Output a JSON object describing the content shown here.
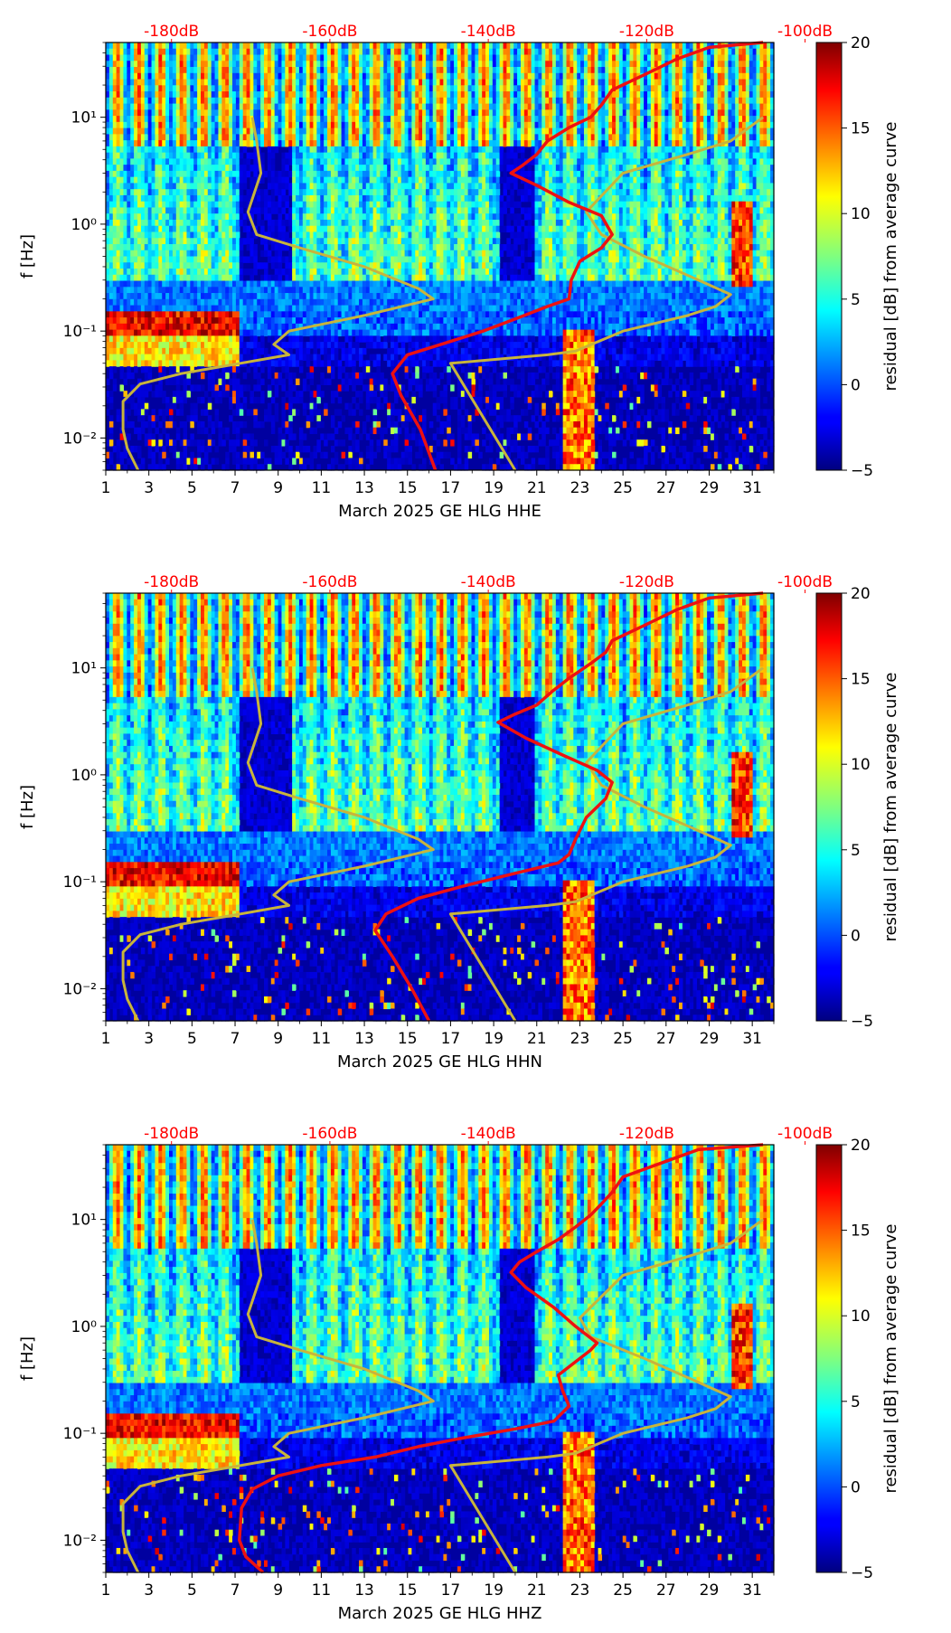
{
  "figure": {
    "background": "#ffffff"
  },
  "chart_data": [
    {
      "type": "heatmap",
      "xlabel": "March 2025 GE HLG  HHE",
      "ylabel": "f [Hz]",
      "x_ticks": [
        "1",
        "3",
        "5",
        "7",
        "9",
        "11",
        "13",
        "15",
        "17",
        "19",
        "21",
        "23",
        "25",
        "27",
        "29",
        "31"
      ],
      "x_range": [
        1,
        32
      ],
      "y_ticks": [
        "10⁻²",
        "10⁻¹",
        "10⁰",
        "10¹"
      ],
      "y_range": [
        0.005,
        50
      ],
      "y_scale": "log",
      "top_axis_labels": [
        "-180dB",
        "-160dB",
        "-140dB",
        "-120dB",
        "-100dB"
      ],
      "top_axis_color": "#ff0000",
      "colorbar": {
        "label": "residual [dB] from average curve",
        "ticks": [
          "−5",
          "0",
          "5",
          "10",
          "15",
          "20"
        ],
        "range": [
          -5,
          20
        ],
        "colormap": "jet"
      },
      "red_curve": {
        "color": "#ee1111",
        "points": [
          [
            16.3,
            0.005
          ],
          [
            15.6,
            0.012
          ],
          [
            14.7,
            0.025
          ],
          [
            14.3,
            0.04
          ],
          [
            15.0,
            0.06
          ],
          [
            17.0,
            0.08
          ],
          [
            18.5,
            0.1
          ],
          [
            20.0,
            0.13
          ],
          [
            21.5,
            0.17
          ],
          [
            22.5,
            0.2
          ],
          [
            22.6,
            0.3
          ],
          [
            23.0,
            0.45
          ],
          [
            24.0,
            0.6
          ],
          [
            24.5,
            0.8
          ],
          [
            24.0,
            1.2
          ],
          [
            22.5,
            1.6
          ],
          [
            21.0,
            2.3
          ],
          [
            19.8,
            3.0
          ],
          [
            20.3,
            3.5
          ],
          [
            21.0,
            4.5
          ],
          [
            21.5,
            6
          ],
          [
            22.5,
            8
          ],
          [
            23.5,
            10
          ],
          [
            24.0,
            13
          ],
          [
            24.5,
            18
          ],
          [
            26.0,
            25
          ],
          [
            27.5,
            35
          ],
          [
            29.0,
            45
          ],
          [
            31.5,
            50
          ]
        ]
      },
      "yellow_curve": {
        "color": "#c8b43c",
        "points": [
          [
            2.5,
            0.005
          ],
          [
            2.0,
            0.008
          ],
          [
            1.8,
            0.012
          ],
          [
            1.8,
            0.022
          ],
          [
            2.6,
            0.032
          ],
          [
            4.5,
            0.04
          ],
          [
            9.5,
            0.06
          ],
          [
            8.8,
            0.075
          ],
          [
            9.5,
            0.1
          ],
          [
            13.0,
            0.14
          ],
          [
            16.2,
            0.2
          ],
          [
            15.5,
            0.25
          ],
          [
            13.0,
            0.4
          ],
          [
            10.0,
            0.6
          ],
          [
            8.0,
            0.8
          ],
          [
            7.6,
            1.3
          ],
          [
            8.2,
            3.0
          ],
          [
            8.0,
            6.0
          ],
          [
            7.8,
            10.0
          ]
        ]
      },
      "yellow_curve_2": {
        "color": "#c8b43c",
        "points": [
          [
            20.0,
            0.005
          ],
          [
            17.0,
            0.05
          ],
          [
            21.5,
            0.06
          ],
          [
            22.8,
            0.065
          ],
          [
            25.0,
            0.1
          ],
          [
            28.0,
            0.14
          ],
          [
            29.3,
            0.17
          ],
          [
            30.0,
            0.22
          ],
          [
            28.5,
            0.3
          ],
          [
            26.0,
            0.5
          ],
          [
            24.0,
            0.8
          ],
          [
            23.3,
            1.3
          ],
          [
            25.0,
            3.0
          ],
          [
            28.0,
            4.5
          ],
          [
            30.0,
            6.0
          ],
          [
            31.5,
            10.0
          ]
        ]
      }
    },
    {
      "type": "heatmap",
      "xlabel": "March 2025 GE HLG  HHN",
      "ylabel": "f [Hz]",
      "x_ticks": [
        "1",
        "3",
        "5",
        "7",
        "9",
        "11",
        "13",
        "15",
        "17",
        "19",
        "21",
        "23",
        "25",
        "27",
        "29",
        "31"
      ],
      "x_range": [
        1,
        32
      ],
      "y_ticks": [
        "10⁻²",
        "10⁻¹",
        "10⁰",
        "10¹"
      ],
      "y_range": [
        0.005,
        50
      ],
      "y_scale": "log",
      "top_axis_labels": [
        "-180dB",
        "-160dB",
        "-140dB",
        "-120dB",
        "-100dB"
      ],
      "top_axis_color": "#ff0000",
      "colorbar": {
        "label": "residual [dB] from average curve",
        "ticks": [
          "−5",
          "0",
          "5",
          "10",
          "15",
          "20"
        ],
        "range": [
          -5,
          20
        ],
        "colormap": "jet"
      },
      "red_curve": {
        "color": "#ee1111",
        "points": [
          [
            16.0,
            0.005
          ],
          [
            15.2,
            0.01
          ],
          [
            14.3,
            0.02
          ],
          [
            13.5,
            0.035
          ],
          [
            14.0,
            0.05
          ],
          [
            15.5,
            0.07
          ],
          [
            17.5,
            0.09
          ],
          [
            20.0,
            0.12
          ],
          [
            22.0,
            0.15
          ],
          [
            22.5,
            0.18
          ],
          [
            22.8,
            0.25
          ],
          [
            23.3,
            0.4
          ],
          [
            24.2,
            0.6
          ],
          [
            24.5,
            0.85
          ],
          [
            23.8,
            1.1
          ],
          [
            22.3,
            1.5
          ],
          [
            20.5,
            2.2
          ],
          [
            19.2,
            3.1
          ],
          [
            20.0,
            3.7
          ],
          [
            21.0,
            4.5
          ],
          [
            21.7,
            6
          ],
          [
            22.5,
            8
          ],
          [
            23.5,
            11
          ],
          [
            24.2,
            14
          ],
          [
            24.5,
            18
          ],
          [
            26.0,
            25
          ],
          [
            27.5,
            35
          ],
          [
            29.0,
            45
          ],
          [
            31.5,
            50
          ]
        ]
      },
      "yellow_curve": {
        "color": "#c8b43c",
        "points": [
          [
            2.5,
            0.005
          ],
          [
            2.0,
            0.008
          ],
          [
            1.8,
            0.012
          ],
          [
            1.8,
            0.022
          ],
          [
            2.6,
            0.032
          ],
          [
            4.5,
            0.04
          ],
          [
            9.5,
            0.06
          ],
          [
            8.8,
            0.075
          ],
          [
            9.5,
            0.1
          ],
          [
            13.0,
            0.14
          ],
          [
            16.2,
            0.2
          ],
          [
            15.5,
            0.25
          ],
          [
            13.0,
            0.4
          ],
          [
            10.0,
            0.6
          ],
          [
            8.0,
            0.8
          ],
          [
            7.6,
            1.3
          ],
          [
            8.2,
            3.0
          ],
          [
            8.0,
            6.0
          ],
          [
            7.8,
            10.0
          ]
        ]
      },
      "yellow_curve_2": {
        "color": "#c8b43c",
        "points": [
          [
            20.0,
            0.005
          ],
          [
            17.0,
            0.05
          ],
          [
            21.5,
            0.06
          ],
          [
            22.8,
            0.065
          ],
          [
            25.0,
            0.1
          ],
          [
            28.0,
            0.14
          ],
          [
            29.3,
            0.17
          ],
          [
            30.0,
            0.22
          ],
          [
            28.5,
            0.3
          ],
          [
            26.0,
            0.5
          ],
          [
            24.0,
            0.8
          ],
          [
            23.3,
            1.3
          ],
          [
            25.0,
            3.0
          ],
          [
            28.0,
            4.5
          ],
          [
            30.0,
            6.0
          ],
          [
            31.5,
            10.0
          ]
        ]
      }
    },
    {
      "type": "heatmap",
      "xlabel": "March 2025 GE HLG  HHZ",
      "ylabel": "f [Hz]",
      "x_ticks": [
        "1",
        "3",
        "5",
        "7",
        "9",
        "11",
        "13",
        "15",
        "17",
        "19",
        "21",
        "23",
        "25",
        "27",
        "29",
        "31"
      ],
      "x_range": [
        1,
        32
      ],
      "y_ticks": [
        "10⁻²",
        "10⁻¹",
        "10⁰",
        "10¹"
      ],
      "y_range": [
        0.005,
        50
      ],
      "y_scale": "log",
      "top_axis_labels": [
        "-180dB",
        "-160dB",
        "-140dB",
        "-120dB",
        "-100dB"
      ],
      "top_axis_color": "#ff0000",
      "colorbar": {
        "label": "residual [dB] from average curve",
        "ticks": [
          "−5",
          "0",
          "5",
          "10",
          "15",
          "20"
        ],
        "range": [
          -5,
          20
        ],
        "colormap": "jet"
      },
      "red_curve": {
        "color": "#ee1111",
        "points": [
          [
            8.3,
            0.005
          ],
          [
            7.5,
            0.007
          ],
          [
            7.2,
            0.01
          ],
          [
            7.3,
            0.02
          ],
          [
            7.8,
            0.03
          ],
          [
            9.0,
            0.04
          ],
          [
            11.0,
            0.05
          ],
          [
            13.5,
            0.06
          ],
          [
            15.5,
            0.075
          ],
          [
            17.5,
            0.09
          ],
          [
            20.0,
            0.11
          ],
          [
            21.8,
            0.13
          ],
          [
            22.5,
            0.18
          ],
          [
            22.2,
            0.25
          ],
          [
            22.0,
            0.35
          ],
          [
            22.7,
            0.45
          ],
          [
            23.5,
            0.6
          ],
          [
            23.8,
            0.7
          ],
          [
            22.8,
            1.0
          ],
          [
            21.8,
            1.5
          ],
          [
            20.5,
            2.3
          ],
          [
            19.8,
            3.2
          ],
          [
            20.2,
            4.0
          ],
          [
            21.0,
            5.0
          ],
          [
            22.0,
            6.5
          ],
          [
            22.8,
            8.5
          ],
          [
            23.5,
            11
          ],
          [
            24.0,
            14
          ],
          [
            24.5,
            18
          ],
          [
            25.0,
            25
          ],
          [
            27.0,
            35
          ],
          [
            28.5,
            45
          ],
          [
            31.5,
            50
          ]
        ]
      },
      "yellow_curve": {
        "color": "#c8b43c",
        "points": [
          [
            2.5,
            0.005
          ],
          [
            2.0,
            0.008
          ],
          [
            1.8,
            0.012
          ],
          [
            1.8,
            0.022
          ],
          [
            2.6,
            0.032
          ],
          [
            4.5,
            0.04
          ],
          [
            9.5,
            0.06
          ],
          [
            8.8,
            0.075
          ],
          [
            9.5,
            0.1
          ],
          [
            13.0,
            0.14
          ],
          [
            16.2,
            0.2
          ],
          [
            15.5,
            0.25
          ],
          [
            13.0,
            0.4
          ],
          [
            10.0,
            0.6
          ],
          [
            8.0,
            0.8
          ],
          [
            7.6,
            1.3
          ],
          [
            8.2,
            3.0
          ],
          [
            8.0,
            6.0
          ],
          [
            7.8,
            10.0
          ]
        ]
      },
      "yellow_curve_2": {
        "color": "#c8b43c",
        "points": [
          [
            20.0,
            0.005
          ],
          [
            17.0,
            0.05
          ],
          [
            21.5,
            0.06
          ],
          [
            22.8,
            0.065
          ],
          [
            25.0,
            0.1
          ],
          [
            28.0,
            0.14
          ],
          [
            29.3,
            0.17
          ],
          [
            30.0,
            0.22
          ],
          [
            28.5,
            0.3
          ],
          [
            26.0,
            0.5
          ],
          [
            23.5,
            0.8
          ],
          [
            23.0,
            1.2
          ],
          [
            25.0,
            3.0
          ],
          [
            28.0,
            4.5
          ],
          [
            30.0,
            6.0
          ],
          [
            31.5,
            10.0
          ]
        ]
      }
    }
  ]
}
